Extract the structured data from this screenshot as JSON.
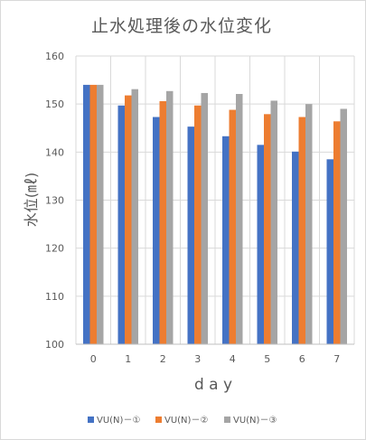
{
  "chart_data": {
    "type": "bar",
    "title": "止水処理後の水位変化",
    "xlabel": "d a y",
    "ylabel": "水位(㎖)",
    "categories": [
      "0",
      "1",
      "2",
      "3",
      "4",
      "5",
      "6",
      "7"
    ],
    "ylim": [
      100,
      160
    ],
    "yticks": [
      "100",
      "110",
      "120",
      "130",
      "140",
      "150",
      "160"
    ],
    "grid": true,
    "legend_position": "bottom",
    "series": [
      {
        "name": "VU(N)－①",
        "color": "#4472c4",
        "values": [
          154,
          149.7,
          147.3,
          145.3,
          143.3,
          141.5,
          140.1,
          138.5
        ]
      },
      {
        "name": "VU(N)－②",
        "color": "#ed7d31",
        "values": [
          154,
          151.8,
          150.6,
          149.7,
          148.8,
          147.9,
          147.3,
          146.4
        ]
      },
      {
        "name": "VU(N)－③",
        "color": "#a5a5a5",
        "values": [
          154,
          153.1,
          152.7,
          152.3,
          152.1,
          150.7,
          150.0,
          149.0
        ]
      }
    ]
  }
}
